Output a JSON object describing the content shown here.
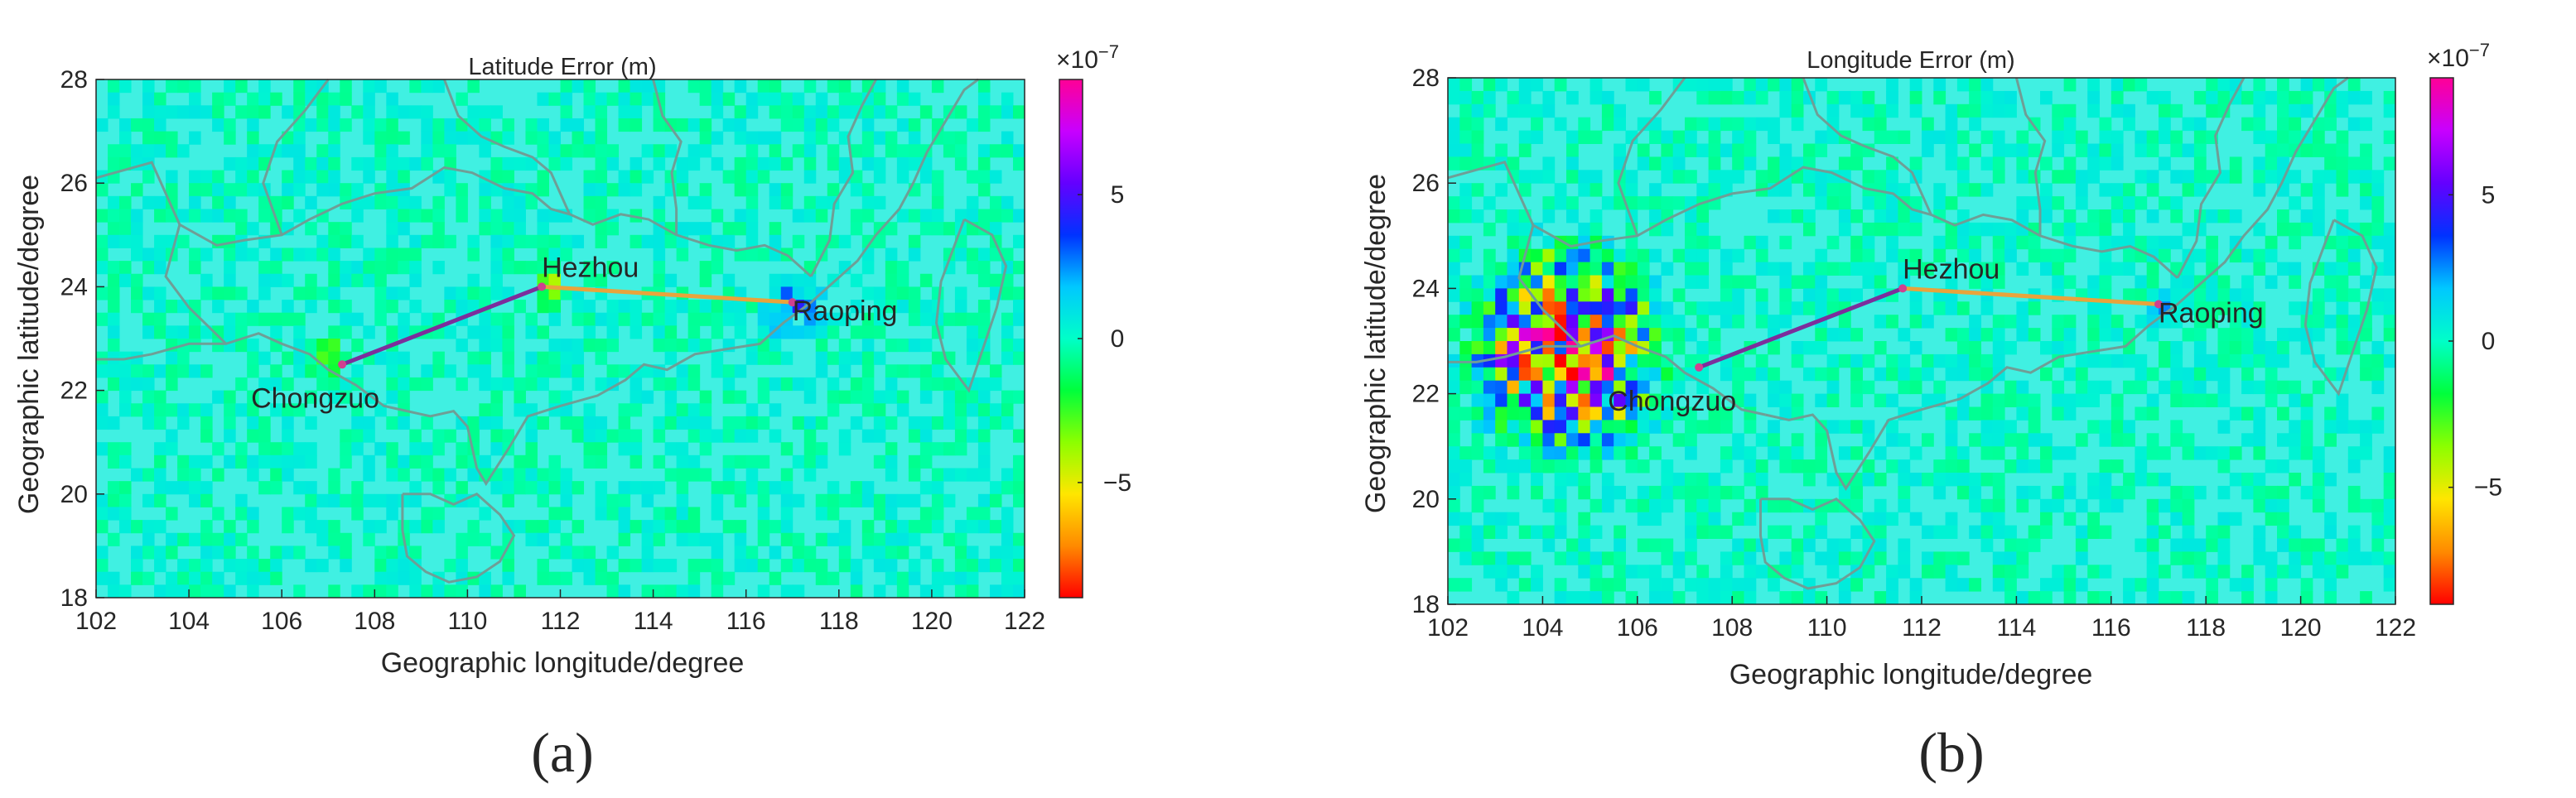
{
  "figure": {
    "panel_labels": [
      "(a)",
      "(b)"
    ],
    "colorbar": {
      "exponent_text": "×10",
      "exponent_power": "−7",
      "ticks": [
        5,
        0,
        -5
      ],
      "tick_labels": [
        "5",
        "0",
        "−5"
      ],
      "range": [
        -9,
        9
      ],
      "colormap": [
        "#ff0000",
        "#ff8a00",
        "#ffe600",
        "#8cff00",
        "#00ff3c",
        "#00ffc8",
        "#00c8ff",
        "#0032ff",
        "#6400ff",
        "#c800ff",
        "#ff0096"
      ]
    },
    "map_background_color": "#40f0e2",
    "border_color": "#6f9e96",
    "route_colors": {
      "west_segment": "#7c2e9c",
      "east_segment": "#e8a43c"
    }
  },
  "chart_data": [
    {
      "type": "heatmap",
      "title": "Latitude Error (m)",
      "xlabel": "Geographic longitude/degree",
      "ylabel": "Geographic latitude/degree",
      "xlim": [
        102,
        122
      ],
      "ylim": [
        18,
        28
      ],
      "xticks": [
        102,
        104,
        106,
        108,
        110,
        112,
        114,
        116,
        118,
        120,
        122
      ],
      "yticks": [
        18,
        20,
        22,
        24,
        26,
        28
      ],
      "colorbar_scale": "1e-7",
      "cities": [
        {
          "name": "Hezhou",
          "lon": 111.6,
          "lat": 24.0
        },
        {
          "name": "Raoping",
          "lon": 117.0,
          "lat": 23.7
        },
        {
          "name": "Chongzuo",
          "lon": 107.3,
          "lat": 22.5
        }
      ],
      "route": [
        "Chongzuo",
        "Hezhou",
        "Raoping"
      ],
      "error_hotspots": [
        {
          "lon": 117.0,
          "lat": 23.6,
          "value": 4.0,
          "radius": 0.8
        },
        {
          "lon": 111.8,
          "lat": 24.0,
          "value": -4.0,
          "radius": 0.5
        },
        {
          "lon": 107.0,
          "lat": 22.6,
          "value": -5.0,
          "radius": 0.5
        }
      ]
    },
    {
      "type": "heatmap",
      "title": "Longitude Error (m)",
      "xlabel": "Geographic longitude/degree",
      "ylabel": "Geographic latitude/degree",
      "xlim": [
        102,
        122
      ],
      "ylim": [
        18,
        28
      ],
      "xticks": [
        102,
        104,
        106,
        108,
        110,
        112,
        114,
        116,
        118,
        120,
        122
      ],
      "yticks": [
        18,
        20,
        22,
        24,
        26,
        28
      ],
      "colorbar_scale": "1e-7",
      "cities": [
        {
          "name": "Hezhou",
          "lon": 111.6,
          "lat": 24.0
        },
        {
          "name": "Raoping",
          "lon": 117.0,
          "lat": 23.7
        },
        {
          "name": "Chongzuo",
          "lon": 107.3,
          "lat": 22.5
        }
      ],
      "route": [
        "Chongzuo",
        "Hezhou",
        "Raoping"
      ],
      "error_hotspots": [
        {
          "lon": 104.5,
          "lat": 22.8,
          "value": 9.0,
          "radius": 2.5
        },
        {
          "lon": 117.0,
          "lat": 23.6,
          "value": 2.0,
          "radius": 0.5
        }
      ]
    }
  ]
}
